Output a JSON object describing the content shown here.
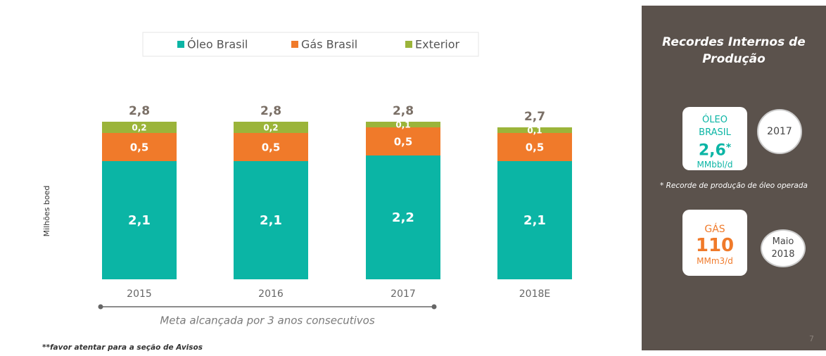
{
  "chart_data": {
    "type": "bar",
    "stacked": true,
    "categories": [
      "2015",
      "2016",
      "2017",
      "2018E"
    ],
    "series": [
      {
        "name": "Óleo Brasil",
        "color": "#0bb5a5",
        "values": [
          2.1,
          2.1,
          2.2,
          2.1
        ],
        "value_labels": [
          "2,1",
          "2,1",
          "2,2",
          "2,1"
        ]
      },
      {
        "name": "Gás Brasil",
        "color": "#f07a2a",
        "values": [
          0.5,
          0.5,
          0.5,
          0.5
        ],
        "value_labels": [
          "0,5",
          "0,5",
          "0,5",
          "0,5"
        ]
      },
      {
        "name": "Exterior",
        "color": "#9bb43a",
        "values": [
          0.2,
          0.2,
          0.1,
          0.1
        ],
        "value_labels": [
          "0,2",
          "0,2",
          "0,1",
          "0,1"
        ]
      }
    ],
    "totals": [
      2.8,
      2.8,
      2.8,
      2.7
    ],
    "total_labels": [
      "2,8",
      "2,8",
      "2,8",
      "2,7"
    ],
    "ylim": [
      0,
      3
    ],
    "y_label": "Milhões boed",
    "annotation": "Meta alcançada por 3 anos consecutivos"
  },
  "footnote": "**favor atentar para a seção de Avisos",
  "page_number": "7",
  "panel": {
    "title": "Recordes Internos de Produção",
    "records": [
      {
        "label": "ÓLEO BRASIL",
        "value": 2.6,
        "value_label": "2,6",
        "marker": "*",
        "unit": "MMbbl/d",
        "date": "2017"
      },
      {
        "label": "GÁS",
        "value": 110,
        "unit": "MMm3/d",
        "date": "Maio 2018"
      }
    ],
    "note": "* Recorde de produção de óleo operada"
  }
}
